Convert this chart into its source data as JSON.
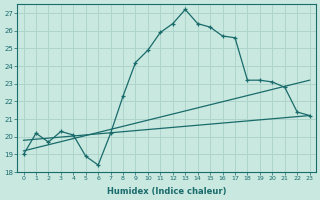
{
  "xlabel": "Humidex (Indice chaleur)",
  "ylabel": "",
  "background_color": "#c8e8e0",
  "grid_color": "#aed4cc",
  "line_color": "#1a6b6b",
  "xlim": [
    -0.5,
    23.5
  ],
  "ylim": [
    18,
    27.5
  ],
  "yticks": [
    18,
    19,
    20,
    21,
    22,
    23,
    24,
    25,
    26,
    27
  ],
  "xticks": [
    0,
    1,
    2,
    3,
    4,
    5,
    6,
    7,
    8,
    9,
    10,
    11,
    12,
    13,
    14,
    15,
    16,
    17,
    18,
    19,
    20,
    21,
    22,
    23
  ],
  "line1_x": [
    0,
    1,
    2,
    3,
    4,
    5,
    6,
    7,
    8,
    9,
    10,
    11,
    12,
    13,
    14,
    15,
    16,
    17,
    18,
    19,
    20,
    21,
    22,
    23
  ],
  "line1_y": [
    19.0,
    20.2,
    19.7,
    20.3,
    20.1,
    18.9,
    18.4,
    20.2,
    22.3,
    24.2,
    24.9,
    25.9,
    26.4,
    27.2,
    26.4,
    26.2,
    25.7,
    25.6,
    23.2,
    23.2,
    23.1,
    22.8,
    21.4,
    21.2
  ],
  "line2_x": [
    0,
    23
  ],
  "line2_y": [
    19.2,
    23.2
  ],
  "line3_x": [
    0,
    23
  ],
  "line3_y": [
    19.8,
    21.2
  ]
}
